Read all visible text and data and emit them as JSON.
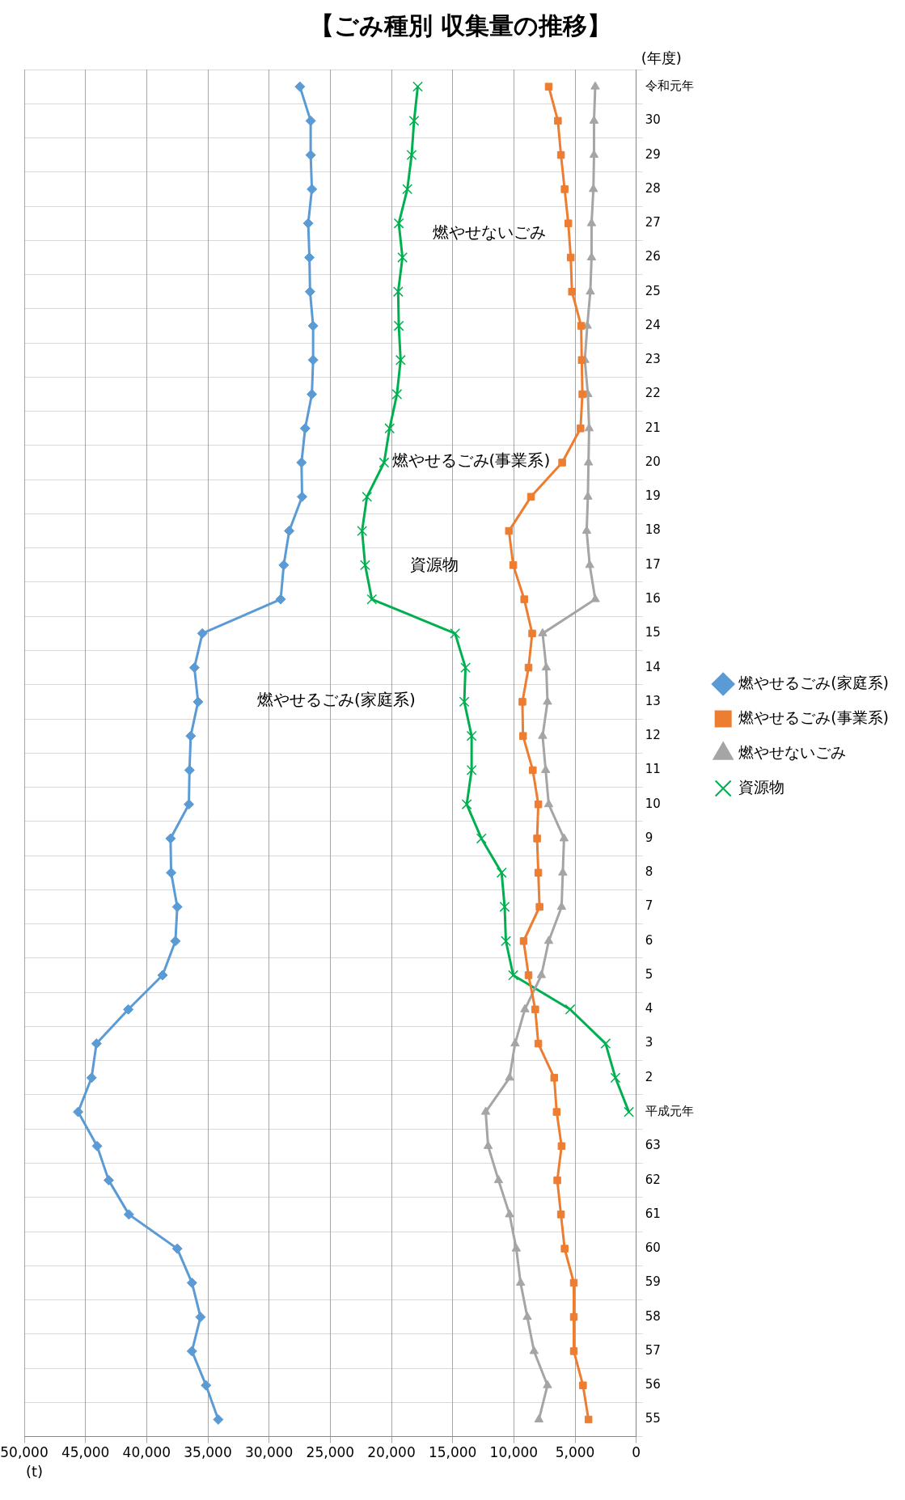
{
  "chart_data": {
    "type": "line",
    "orientation": "horizontal",
    "title": "【ごみ種別 収集量の推移】",
    "xlabel": "(t)",
    "ylabel": "(年度)",
    "categories": [
      "令和元年",
      "30",
      "29",
      "28",
      "27",
      "26",
      "25",
      "24",
      "23",
      "22",
      "21",
      "20",
      "19",
      "18",
      "17",
      "16",
      "15",
      "14",
      "13",
      "12",
      "11",
      "10",
      "9",
      "8",
      "7",
      "6",
      "5",
      "4",
      "3",
      "2",
      "平成元年",
      "63",
      "62",
      "61",
      "60",
      "59",
      "58",
      "57",
      "56",
      "55"
    ],
    "series": [
      {
        "name": "燃やせるごみ(家庭系)",
        "color": "#5b9bd5",
        "marker": "diamond",
        "values": [
          27480,
          26600,
          26600,
          26500,
          26800,
          26700,
          26650,
          26400,
          26400,
          26500,
          27050,
          27350,
          27300,
          28350,
          28800,
          29050,
          35450,
          36100,
          35800,
          36400,
          36500,
          36550,
          38050,
          38000,
          37500,
          37650,
          38700,
          41500,
          44100,
          44500,
          45600,
          44050,
          43100,
          41450,
          37500,
          36300,
          35600,
          36300,
          35150,
          34150
        ]
      },
      {
        "name": "燃やせるごみ(事業系)",
        "color": "#ed7d31",
        "marker": "square",
        "values": [
          7150,
          6400,
          6150,
          5850,
          5550,
          5350,
          5250,
          4500,
          4450,
          4400,
          4550,
          6050,
          8600,
          10400,
          10050,
          9150,
          8500,
          8800,
          9300,
          9250,
          8450,
          8000,
          8100,
          8000,
          7900,
          9200,
          8800,
          8250,
          8000,
          6700,
          6500,
          6100,
          6450,
          6150,
          5850,
          5100,
          5100,
          5100,
          4350,
          3900
        ]
      },
      {
        "name": "燃やせないごみ",
        "color": "#a5a5a5",
        "marker": "triangle",
        "values": [
          3350,
          3450,
          3450,
          3500,
          3650,
          3650,
          3750,
          4000,
          4200,
          3950,
          3850,
          3900,
          3950,
          4050,
          3800,
          3350,
          7650,
          7350,
          7250,
          7650,
          7400,
          7150,
          5900,
          6000,
          6100,
          7150,
          7750,
          9100,
          9900,
          10350,
          12300,
          12100,
          11250,
          10350,
          9800,
          9450,
          8900,
          8350,
          7250,
          7950
        ]
      },
      {
        "name": "資源物",
        "color": "#00b050",
        "marker": "cross",
        "values": [
          17850,
          18150,
          18350,
          18700,
          19400,
          19100,
          19450,
          19400,
          19250,
          19550,
          20150,
          20600,
          22000,
          22400,
          22150,
          21600,
          14800,
          13950,
          14050,
          13450,
          13450,
          13850,
          12650,
          11000,
          10750,
          10650,
          10050,
          5400,
          2500,
          1700,
          600,
          null,
          null,
          null,
          null,
          null,
          null,
          null,
          null,
          null
        ]
      }
    ],
    "xlim": [
      50000,
      0
    ],
    "xticks": [
      {
        "value": 0,
        "label": "0"
      },
      {
        "value": 5000,
        "label": "5,000"
      },
      {
        "value": 10000,
        "label": "10,000"
      },
      {
        "value": 15000,
        "label": "15,000"
      },
      {
        "value": 20000,
        "label": "20,000"
      },
      {
        "value": 25000,
        "label": "25,000"
      },
      {
        "value": 30000,
        "label": "30,000"
      },
      {
        "value": 35000,
        "label": "35,000"
      },
      {
        "value": 40000,
        "label": "40,000"
      },
      {
        "value": 45000,
        "label": "45,000"
      },
      {
        "value": 50000,
        "label": "50,000"
      }
    ],
    "grid": true,
    "legend": "right",
    "line_style": "solid",
    "annotations": [
      "燃やせるごみ(家庭系)",
      "資源物",
      "燃やせるごみ(事業系)",
      "燃やせないごみ"
    ]
  }
}
